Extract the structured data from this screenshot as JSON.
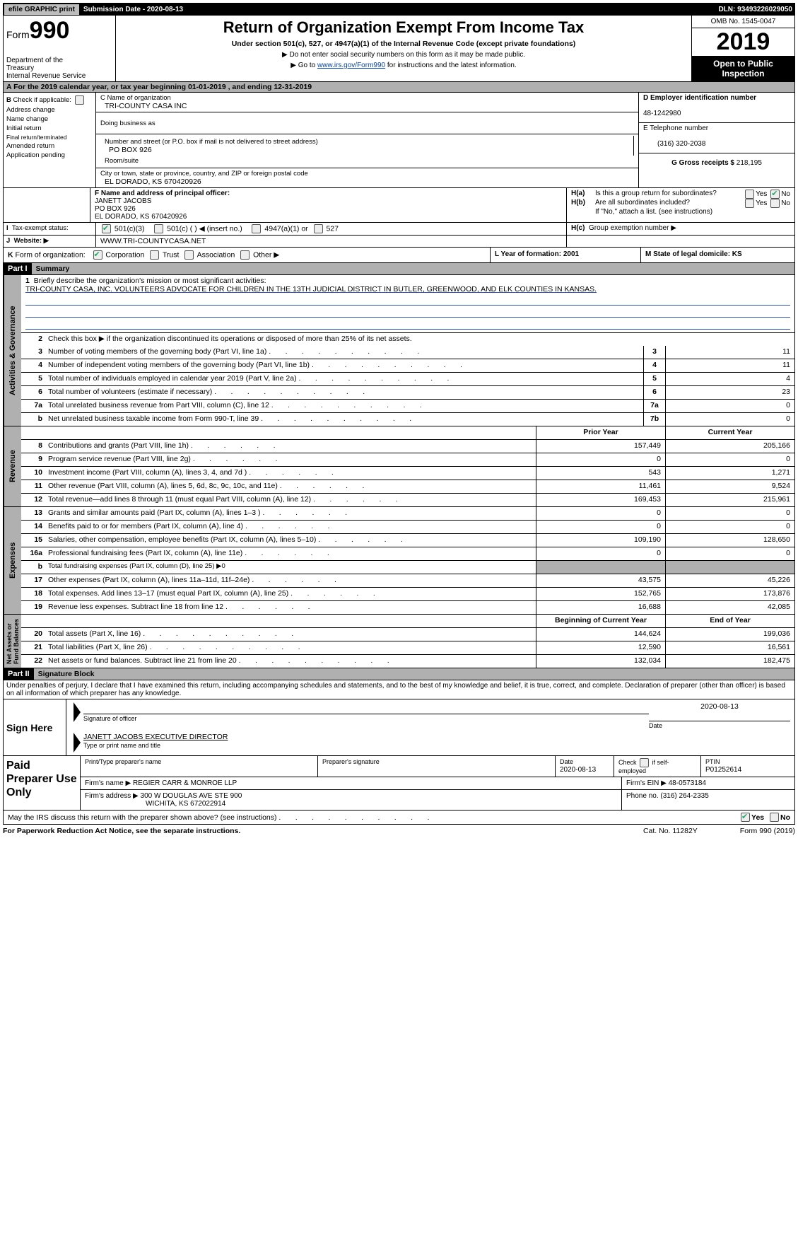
{
  "topbar": {
    "efile_btn": "efile GRAPHIC print",
    "sub_label": "Submission Date - 2020-08-13",
    "dln_label": "DLN: 93493226029050"
  },
  "header": {
    "form_word": "Form",
    "form_num": "990",
    "dept1": "Department of the",
    "dept2": "Treasury",
    "dept3": "Internal Revenue Service",
    "title": "Return of Organization Exempt From Income Tax",
    "sub": "Under section 501(c), 527, or 4947(a)(1) of the Internal Revenue Code (except private foundations)",
    "sub2a": "▶ Do not enter social security numbers on this form as it may be made public.",
    "sub2b_pre": "▶ Go to ",
    "sub2b_link": "www.irs.gov/Form990",
    "sub2b_post": " for instructions and the latest information.",
    "omb": "OMB No. 1545-0047",
    "year": "2019",
    "open": "Open to Public Inspection"
  },
  "rowA": "A   For the 2019 calendar year, or tax year beginning 01-01-2019         , and ending 12-31-2019",
  "colB": {
    "head": "B",
    "check": "Check if applicable:",
    "addr": "Address change",
    "name": "Name change",
    "init": "Initial return",
    "final": "Final return/terminated",
    "amend": "Amended return",
    "app": "Application pending"
  },
  "colC": {
    "c_label": "C Name of organization",
    "c_val": "TRI-COUNTY CASA INC",
    "dba_label": "Doing business as",
    "dba_val": "",
    "addr_label": "Number and street (or P.O. box if mail is not delivered to street address)",
    "addr_val": "PO BOX 926",
    "room_label": "Room/suite",
    "city_label": "City or town, state or province, country, and ZIP or foreign postal code",
    "city_val": "EL DORADO, KS  670420926"
  },
  "colDE": {
    "d_label": "D Employer identification number",
    "d_val": "48-1242980",
    "e_label": "E Telephone number",
    "e_val": "(316) 320-2038",
    "g_label": "G Gross receipts $",
    "g_val": "218,195"
  },
  "f": {
    "label": "F  Name and address of principal officer:",
    "l1": "JANETT JACOBS",
    "l2": "PO BOX 926",
    "l3": "EL DORADO, KS  670420926"
  },
  "h": {
    "a_label": "H(a)",
    "a_txt": "Is this a group return for subordinates?",
    "b_label": "H(b)",
    "b_txt": "Are all subordinates included?",
    "b_note": "If \"No,\" attach a list. (see instructions)",
    "c_label": "H(c)",
    "c_txt": "Group exemption number ▶",
    "yes": "Yes",
    "no": "No"
  },
  "i": {
    "label": "I",
    "txt": "Tax-exempt status:",
    "o1": "501(c)(3)",
    "o2": "501(c) (   ) ◀ (insert no.)",
    "o3": "4947(a)(1) or",
    "o4": "527"
  },
  "j": {
    "label": "J",
    "txt": "Website: ▶",
    "val": "WWW.TRI-COUNTYCASA.NET"
  },
  "k": {
    "label": "K",
    "txt": "Form of organization:",
    "o1": "Corporation",
    "o2": "Trust",
    "o3": "Association",
    "o4": "Other ▶"
  },
  "ly": {
    "l": "L Year of formation: 2001",
    "m": "M State of legal domicile: KS"
  },
  "part1": {
    "label": "Part I",
    "title": "Summary"
  },
  "mission": {
    "num": "1",
    "txt": "Briefly describe the organization's mission or most significant activities:",
    "val": "TRI-COUNTY CASA, INC. VOLUNTEERS ADVOCATE FOR CHILDREN IN THE 13TH JUDICIAL DISTRICT IN BUTLER, GREENWOOD, AND ELK COUNTIES IN KANSAS."
  },
  "act_rows": [
    {
      "n": "2",
      "t": "Check this box ▶      if the organization discontinued its operations or disposed of more than 25% of its net assets.",
      "noval": true
    },
    {
      "n": "3",
      "t": "Number of voting members of the governing body (Part VI, line 1a)",
      "b": "3",
      "v": "11"
    },
    {
      "n": "4",
      "t": "Number of independent voting members of the governing body (Part VI, line 1b)",
      "b": "4",
      "v": "11"
    },
    {
      "n": "5",
      "t": "Total number of individuals employed in calendar year 2019 (Part V, line 2a)",
      "b": "5",
      "v": "4"
    },
    {
      "n": "6",
      "t": "Total number of volunteers (estimate if necessary)",
      "b": "6",
      "v": "23"
    },
    {
      "n": "7a",
      "t": "Total unrelated business revenue from Part VIII, column (C), line 12",
      "b": "7a",
      "v": "0"
    },
    {
      "n": "b",
      "t": "Net unrelated business taxable income from Form 990-T, line 39",
      "b": "7b",
      "v": "0"
    }
  ],
  "rev_head": {
    "py": "Prior Year",
    "cy": "Current Year"
  },
  "rev_rows": [
    {
      "n": "8",
      "t": "Contributions and grants (Part VIII, line 1h)",
      "p": "157,449",
      "c": "205,166"
    },
    {
      "n": "9",
      "t": "Program service revenue (Part VIII, line 2g)",
      "p": "0",
      "c": "0"
    },
    {
      "n": "10",
      "t": "Investment income (Part VIII, column (A), lines 3, 4, and 7d )",
      "p": "543",
      "c": "1,271"
    },
    {
      "n": "11",
      "t": "Other revenue (Part VIII, column (A), lines 5, 6d, 8c, 9c, 10c, and 11e)",
      "p": "11,461",
      "c": "9,524"
    },
    {
      "n": "12",
      "t": "Total revenue—add lines 8 through 11 (must equal Part VIII, column (A), line 12)",
      "p": "169,453",
      "c": "215,961"
    }
  ],
  "exp_rows": [
    {
      "n": "13",
      "t": "Grants and similar amounts paid (Part IX, column (A), lines 1–3 )",
      "p": "0",
      "c": "0"
    },
    {
      "n": "14",
      "t": "Benefits paid to or for members (Part IX, column (A), line 4)",
      "p": "0",
      "c": "0"
    },
    {
      "n": "15",
      "t": "Salaries, other compensation, employee benefits (Part IX, column (A), lines 5–10)",
      "p": "109,190",
      "c": "128,650"
    },
    {
      "n": "16a",
      "t": "Professional fundraising fees (Part IX, column (A), line 11e)",
      "p": "0",
      "c": "0"
    },
    {
      "n": "b",
      "t": "Total fundraising expenses (Part IX, column (D), line 25) ▶0",
      "shade": true
    },
    {
      "n": "17",
      "t": "Other expenses (Part IX, column (A), lines 11a–11d, 11f–24e)",
      "p": "43,575",
      "c": "45,226"
    },
    {
      "n": "18",
      "t": "Total expenses. Add lines 13–17 (must equal Part IX, column (A), line 25)",
      "p": "152,765",
      "c": "173,876"
    },
    {
      "n": "19",
      "t": "Revenue less expenses. Subtract line 18 from line 12",
      "p": "16,688",
      "c": "42,085"
    }
  ],
  "net_head": {
    "py": "Beginning of Current Year",
    "cy": "End of Year"
  },
  "net_rows": [
    {
      "n": "20",
      "t": "Total assets (Part X, line 16)",
      "p": "144,624",
      "c": "199,036"
    },
    {
      "n": "21",
      "t": "Total liabilities (Part X, line 26)",
      "p": "12,590",
      "c": "16,561"
    },
    {
      "n": "22",
      "t": "Net assets or fund balances. Subtract line 21 from line 20",
      "p": "132,034",
      "c": "182,475"
    }
  ],
  "vtabs": {
    "act": "Activities & Governance",
    "rev": "Revenue",
    "exp": "Expenses",
    "net": "Net Assets or\nFund Balances"
  },
  "part2": {
    "label": "Part II",
    "title": "Signature Block"
  },
  "sig_decl": "Under penalties of perjury, I declare that I have examined this return, including accompanying schedules and statements, and to the best of my knowledge and belief, it is true, correct, and complete. Declaration of preparer (other than officer) is based on all information of which preparer has any knowledge.",
  "sign": {
    "here": "Sign Here",
    "sig_label": "Signature of officer",
    "date": "2020-08-13",
    "date_label": "Date",
    "name": "JANETT JACOBS  EXECUTIVE DIRECTOR",
    "name_label": "Type or print name and title"
  },
  "prep": {
    "title": "Paid Preparer Use Only",
    "h1": "Print/Type preparer's name",
    "h2": "Preparer's signature",
    "h3": "Date",
    "h3v": "2020-08-13",
    "h4": "Check        if self-employed",
    "h5": "PTIN",
    "h5v": "P01252614",
    "firm_label": "Firm's name   ▶",
    "firm": "REGIER CARR & MONROE LLP",
    "ein_label": "Firm's EIN ▶",
    "ein": "48-0573184",
    "addr_label": "Firm's address ▶",
    "addr": "300 W DOUGLAS AVE STE 900",
    "addr2": "WICHITA, KS  672022914",
    "phone_label": "Phone no.",
    "phone": "(316) 264-2335"
  },
  "discuss": {
    "txt": "May the IRS discuss this return with the preparer shown above? (see instructions)",
    "yes": "Yes",
    "no": "No"
  },
  "footer": {
    "a": "For Paperwork Reduction Act Notice, see the separate instructions.",
    "b": "Cat. No. 11282Y",
    "c": "Form 990 (2019)"
  }
}
